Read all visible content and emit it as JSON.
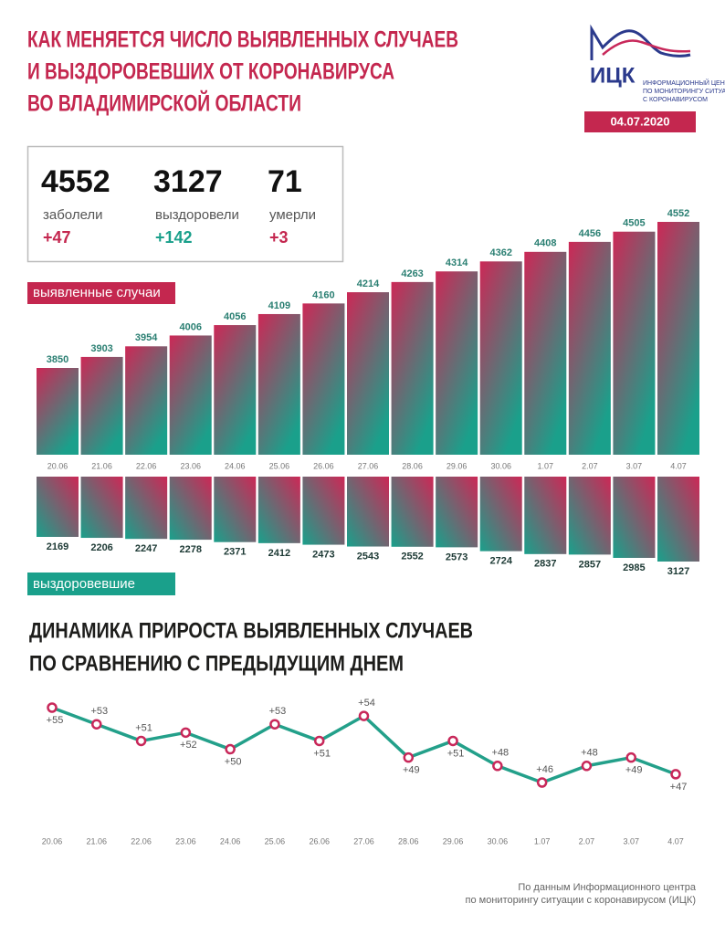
{
  "header": {
    "title": [
      "КАК МЕНЯЕТСЯ ЧИСЛО ВЫЯВЛЕННЫХ СЛУЧАЕВ",
      "И ВЫЗДОРОВЕВШИХ ОТ КОРОНАВИРУСА",
      "ВО ВЛАДИМИРСКОЙ ОБЛАСТИ"
    ],
    "logo": "ИЦК",
    "logo_caption": [
      "ИНФОРМАЦИОННЫЙ ЦЕНТР",
      "ПО МОНИТОРИНГУ СИТУАЦИИ",
      "С КОРОНАВИРУСОМ"
    ],
    "date": "04.07.2020"
  },
  "stats": [
    {
      "value": 4552,
      "label": "заболели",
      "change": "+47"
    },
    {
      "value": 3127,
      "label": "выздоровели",
      "change": "+142"
    },
    {
      "value": 71,
      "label": "умерли",
      "change": "+3"
    }
  ],
  "chart_data": [
    {
      "type": "bar",
      "title": "выявленные случаи",
      "categories": [
        "20.06",
        "21.06",
        "22.06",
        "23.06",
        "24.06",
        "25.06",
        "26.06",
        "27.06",
        "28.06",
        "29.06",
        "30.06",
        "1.07",
        "2.07",
        "3.07",
        "4.07"
      ],
      "values": [
        3850,
        3903,
        3954,
        4006,
        4056,
        4109,
        4160,
        4214,
        4263,
        4314,
        4362,
        4408,
        4456,
        4505,
        4552
      ],
      "colors": [
        "#cc2856",
        "#1aa08b"
      ]
    },
    {
      "type": "bar",
      "title": "выздоровевшие",
      "values": [
        2169,
        2206,
        2247,
        2278,
        2371,
        2412,
        2473,
        2543,
        2552,
        2573,
        2724,
        2837,
        2857,
        2985,
        3127
      ],
      "colors": [
        "#cc2856",
        "#1aa08b"
      ]
    },
    {
      "type": "line",
      "title": [
        "ДИНАМИКА ПРИРОСТА ВЫЯВЛЕННЫХ СЛУЧАЕВ",
        "ПО СРАВНЕНИЮ С ПРЕДЫДУЩИМ ДНЕМ"
      ],
      "categories": [
        "20.06",
        "21.06",
        "22.06",
        "23.06",
        "24.06",
        "25.06",
        "26.06",
        "27.06",
        "28.06",
        "29.06",
        "30.06",
        "1.07",
        "2.07",
        "3.07",
        "4.07"
      ],
      "values": [
        55,
        53,
        51,
        52,
        50,
        53,
        51,
        54,
        49,
        51,
        48,
        46,
        48,
        49,
        47
      ],
      "value_labels": [
        "+55",
        "+53",
        "+51",
        "+52",
        "+50",
        "+53",
        "+51",
        "+54",
        "+49",
        "+51",
        "+48",
        "+46",
        "+48",
        "+49",
        "+47"
      ],
      "color": "#23a08a",
      "marker_color": "#c8285a"
    }
  ],
  "footer": [
    "По данным Информационного центра",
    "по мониторингу ситуации с коронавирусом (ИЦК)"
  ]
}
